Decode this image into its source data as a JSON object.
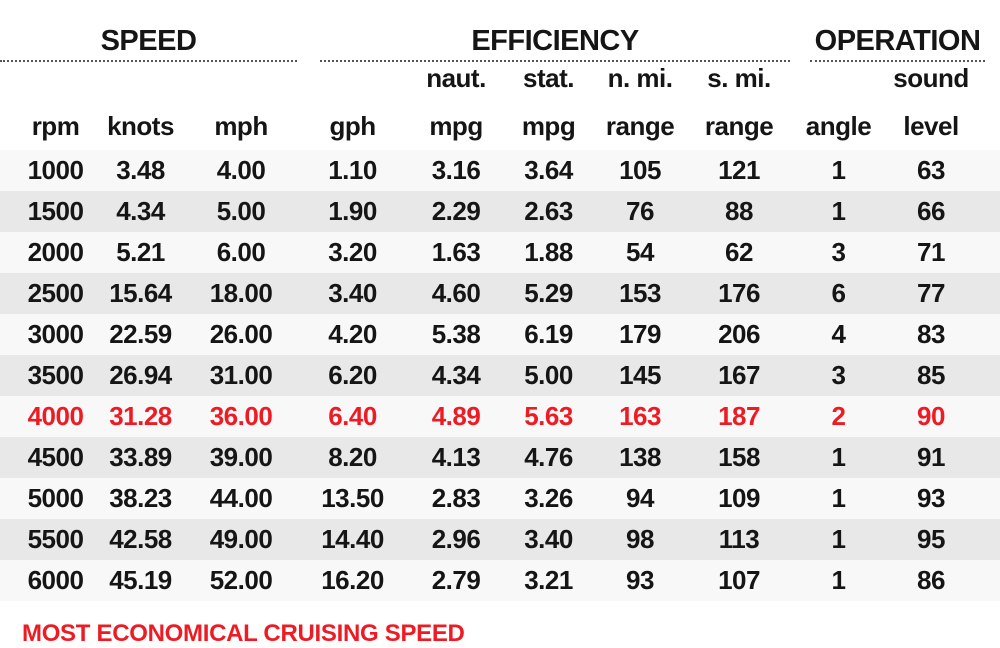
{
  "chart_data": {
    "type": "table",
    "sections": [
      {
        "label": "SPEED",
        "span": 3
      },
      {
        "label": "EFFICIENCY",
        "span": 5
      },
      {
        "label": "OPERATION",
        "span": 2
      }
    ],
    "columns": [
      {
        "top": "",
        "label": "rpm",
        "key": "rpm"
      },
      {
        "top": "",
        "label": "knots",
        "key": "knots"
      },
      {
        "top": "",
        "label": "mph",
        "key": "mph"
      },
      {
        "top": "",
        "label": "gph",
        "key": "gph"
      },
      {
        "top": "naut.",
        "label": "mpg",
        "key": "naut_mpg"
      },
      {
        "top": "stat.",
        "label": "mpg",
        "key": "stat_mpg"
      },
      {
        "top": "n. mi.",
        "label": "range",
        "key": "nmi_range"
      },
      {
        "top": "s. mi.",
        "label": "range",
        "key": "smi_range"
      },
      {
        "top": "",
        "label": "angle",
        "key": "angle"
      },
      {
        "top": "sound",
        "label": "level",
        "key": "sound_level"
      }
    ],
    "rows": [
      [
        "1000",
        "3.48",
        "4.00",
        "1.10",
        "3.16",
        "3.64",
        "105",
        "121",
        "1",
        "63"
      ],
      [
        "1500",
        "4.34",
        "5.00",
        "1.90",
        "2.29",
        "2.63",
        "76",
        "88",
        "1",
        "66"
      ],
      [
        "2000",
        "5.21",
        "6.00",
        "3.20",
        "1.63",
        "1.88",
        "54",
        "62",
        "3",
        "71"
      ],
      [
        "2500",
        "15.64",
        "18.00",
        "3.40",
        "4.60",
        "5.29",
        "153",
        "176",
        "6",
        "77"
      ],
      [
        "3000",
        "22.59",
        "26.00",
        "4.20",
        "5.38",
        "6.19",
        "179",
        "206",
        "4",
        "83"
      ],
      [
        "3500",
        "26.94",
        "31.00",
        "6.20",
        "4.34",
        "5.00",
        "145",
        "167",
        "3",
        "85"
      ],
      [
        "4000",
        "31.28",
        "36.00",
        "6.40",
        "4.89",
        "5.63",
        "163",
        "187",
        "2",
        "90"
      ],
      [
        "4500",
        "33.89",
        "39.00",
        "8.20",
        "4.13",
        "4.76",
        "138",
        "158",
        "1",
        "91"
      ],
      [
        "5000",
        "38.23",
        "44.00",
        "13.50",
        "2.83",
        "3.26",
        "94",
        "109",
        "1",
        "93"
      ],
      [
        "5500",
        "42.58",
        "49.00",
        "14.40",
        "2.96",
        "3.40",
        "98",
        "113",
        "1",
        "95"
      ],
      [
        "6000",
        "45.19",
        "52.00",
        "16.20",
        "2.79",
        "3.21",
        "93",
        "107",
        "1",
        "86"
      ]
    ],
    "highlight_row_index": 6,
    "footnote": "MOST ECONOMICAL CRUISING SPEED",
    "colors": {
      "highlight_red": "#ed1c24",
      "stripe_gray": "#e8e8e9",
      "row_white": "#f8f8f9",
      "text": "#151515",
      "rule_dotted": "#555555"
    },
    "legend_position": "bottom-left",
    "grid": "striped-rows"
  }
}
